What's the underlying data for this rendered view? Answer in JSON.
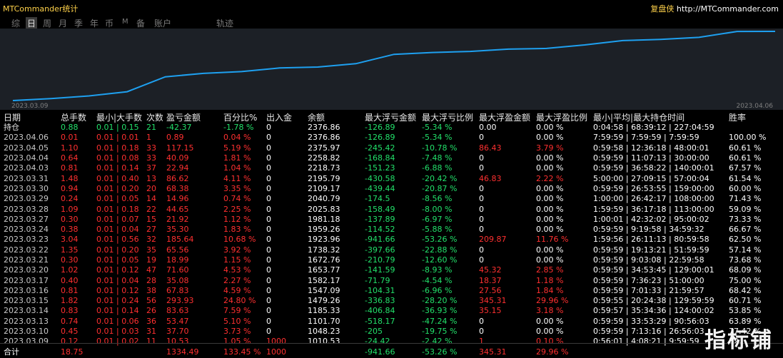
{
  "window": {
    "title": "MTCommander统计",
    "brand": "复盘侠",
    "brand_url": "http://MTCommander.com"
  },
  "tabs": [
    {
      "label": "综"
    },
    {
      "label": "日"
    },
    {
      "label": "周"
    },
    {
      "label": "月"
    },
    {
      "label": "季"
    },
    {
      "label": "年"
    },
    {
      "label": "币"
    },
    {
      "label": "M"
    },
    {
      "label": "备"
    },
    {
      "label": "账户"
    },
    {
      "label": "轨迹"
    }
  ],
  "active_tab": "日",
  "chart_data": {
    "type": "line",
    "x_start_label": "2023.03.09",
    "x_end_label": "2023.04.06",
    "x": [
      "2023.03.09",
      "2023.03.10",
      "2023.03.13",
      "2023.03.14",
      "2023.03.15",
      "2023.03.16",
      "2023.03.17",
      "2023.03.20",
      "2023.03.21",
      "2023.03.22",
      "2023.03.23",
      "2023.03.24",
      "2023.03.27",
      "2023.03.28",
      "2023.03.29",
      "2023.03.30",
      "2023.03.31",
      "2023.04.03",
      "2023.04.04",
      "2023.04.05",
      "2023.04.06"
    ],
    "values": [
      1010.53,
      1048.23,
      1101.7,
      1185.33,
      1479.26,
      1547.09,
      1582.17,
      1653.77,
      1672.76,
      1738.32,
      1923.96,
      1959.26,
      1981.18,
      2025.83,
      2040.79,
      2109.17,
      2195.79,
      2218.73,
      2258.82,
      2375.97,
      2376.86
    ],
    "series_color": "#1ea0f0",
    "grid": false
  },
  "table": {
    "headers": [
      "日期",
      "总手数",
      "最小|大手数",
      "次数",
      "盈亏金额",
      "百分比%",
      "出入金",
      "余额",
      "最大浮亏金额",
      "最大浮亏比例",
      "最大浮盈金额",
      "最大浮盈比例",
      "最小|平均|最大持仓时间",
      "胜率"
    ],
    "holding": [
      "持仓",
      "0.88",
      "0.01 | 0.15",
      "21",
      "-42.37",
      "-1.78 %",
      "0",
      "2376.86",
      "-126.89",
      "-5.34 %",
      "0.00",
      "0.00 %",
      "0:04:58 | 68:39:12 | 227:04:59",
      ""
    ],
    "rows": [
      [
        "2023.04.06",
        "0.01",
        "0.01 | 0.01",
        "1",
        "0.89",
        "0.04 %",
        "0",
        "2376.86",
        "-126.89",
        "-5.34 %",
        "0",
        "0.00 %",
        "7:59:59 | 7:59:59 | 7:59:59",
        "100.00 %"
      ],
      [
        "2023.04.05",
        "1.10",
        "0.01 | 0.18",
        "33",
        "117.15",
        "5.19 %",
        "0",
        "2375.97",
        "-245.42",
        "-10.78 %",
        "86.43",
        "3.79 %",
        "0:59:58 | 12:36:18 | 48:00:01",
        "60.61 %"
      ],
      [
        "2023.04.04",
        "0.64",
        "0.01 | 0.08",
        "33",
        "40.09",
        "1.81 %",
        "0",
        "2258.82",
        "-168.84",
        "-7.48 %",
        "0",
        "0.00 %",
        "0:59:59 | 11:07:13 | 30:00:00",
        "60.61 %"
      ],
      [
        "2023.04.03",
        "0.81",
        "0.01 | 0.14",
        "37",
        "22.94",
        "1.04 %",
        "0",
        "2218.73",
        "-151.23",
        "-6.88 %",
        "0",
        "0.00 %",
        "0:59:59 | 36:58:22 | 140:00:01",
        "67.57 %"
      ],
      [
        "2023.03.31",
        "1.48",
        "0.01 | 0.40",
        "13",
        "86.62",
        "4.11 %",
        "0",
        "2195.79",
        "-430.58",
        "-20.42 %",
        "46.83",
        "2.22 %",
        "5:00:00 | 27:09:15 | 57:00:04",
        "61.54 %"
      ],
      [
        "2023.03.30",
        "0.94",
        "0.01 | 0.20",
        "20",
        "68.38",
        "3.35 %",
        "0",
        "2109.17",
        "-439.44",
        "-20.87 %",
        "0",
        "0.00 %",
        "0:59:59 | 26:53:55 | 159:00:00",
        "60.00 %"
      ],
      [
        "2023.03.29",
        "0.24",
        "0.01 | 0.05",
        "14",
        "14.96",
        "0.74 %",
        "0",
        "2040.79",
        "-174.5",
        "-8.56 %",
        "0",
        "0.00 %",
        "1:00:00 | 26:42:17 | 108:00:00",
        "71.43 %"
      ],
      [
        "2023.03.28",
        "1.09",
        "0.01 | 0.18",
        "22",
        "44.65",
        "2.25 %",
        "0",
        "2025.83",
        "-158.49",
        "-8.00 %",
        "0",
        "0.00 %",
        "1:59:59 | 36:17:18 | 113:00:00",
        "59.09 %"
      ],
      [
        "2023.03.27",
        "0.30",
        "0.01 | 0.07",
        "15",
        "21.92",
        "1.12 %",
        "0",
        "1981.18",
        "-137.89",
        "-6.97 %",
        "0",
        "0.00 %",
        "1:00:01 | 42:32:02 | 95:00:02",
        "73.33 %"
      ],
      [
        "2023.03.24",
        "0.38",
        "0.01 | 0.04",
        "27",
        "35.30",
        "1.83 %",
        "0",
        "1959.26",
        "-114.52",
        "-5.88 %",
        "0",
        "0.00 %",
        "0:59:59 | 9:19:58 | 34:59:32",
        "66.67 %"
      ],
      [
        "2023.03.23",
        "3.04",
        "0.01 | 0.56",
        "32",
        "185.64",
        "10.68 %",
        "0",
        "1923.96",
        "-941.66",
        "-53.26 %",
        "209.87",
        "11.76 %",
        "1:59:56 | 26:11:13 | 80:59:58",
        "62.50 %"
      ],
      [
        "2023.03.22",
        "1.35",
        "0.01 | 0.20",
        "35",
        "65.56",
        "3.92 %",
        "0",
        "1738.32",
        "-397.66",
        "-22.88 %",
        "0",
        "0.00 %",
        "0:59:59 | 19:13:21 | 51:59:59",
        "57.14 %"
      ],
      [
        "2023.03.21",
        "0.30",
        "0.01 | 0.05",
        "19",
        "18.99",
        "1.15 %",
        "0",
        "1672.76",
        "-210.79",
        "-12.60 %",
        "0",
        "0.00 %",
        "0:59:59 | 9:03:08 | 22:59:58",
        "73.68 %"
      ],
      [
        "2023.03.20",
        "1.02",
        "0.01 | 0.12",
        "47",
        "71.60",
        "4.53 %",
        "0",
        "1653.77",
        "-141.59",
        "-8.93 %",
        "45.32",
        "2.85 %",
        "0:59:59 | 34:53:45 | 129:00:01",
        "68.09 %"
      ],
      [
        "2023.03.17",
        "0.40",
        "0.01 | 0.04",
        "28",
        "35.08",
        "2.27 %",
        "0",
        "1582.17",
        "-71.79",
        "-4.54 %",
        "18.37",
        "1.18 %",
        "0:59:59 | 7:36:23 | 51:00:00",
        "75.00 %"
      ],
      [
        "2023.03.16",
        "0.81",
        "0.01 | 0.12",
        "38",
        "67.83",
        "4.59 %",
        "0",
        "1547.09",
        "-104.31",
        "-6.96 %",
        "27.56",
        "1.84 %",
        "0:59:59 | 7:01:33 | 21:59:57",
        "68.42 %"
      ],
      [
        "2023.03.15",
        "1.82",
        "0.01 | 0.24",
        "56",
        "293.93",
        "24.80 %",
        "0",
        "1479.26",
        "-336.83",
        "-28.20 %",
        "345.31",
        "29.96 %",
        "0:59:55 | 20:24:38 | 129:59:59",
        "60.71 %"
      ],
      [
        "2023.03.14",
        "0.83",
        "0.01 | 0.14",
        "26",
        "83.63",
        "7.59 %",
        "0",
        "1185.33",
        "-406.84",
        "-36.93 %",
        "35.15",
        "3.18 %",
        "0:59:57 | 35:34:36 | 124:00:02",
        "53.85 %"
      ],
      [
        "2023.03.13",
        "0.74",
        "0.01 | 0.06",
        "36",
        "53.47",
        "5.10 %",
        "0",
        "1101.70",
        "-518.17",
        "-47.24 %",
        "0",
        "0.00 %",
        "0:59:59 | 33:53:29 | 90:56:03",
        "63.89 %"
      ],
      [
        "2023.03.10",
        "0.45",
        "0.01 | 0.03",
        "31",
        "37.70",
        "3.73 %",
        "0",
        "1048.23",
        "-205",
        "-19.75 %",
        "0",
        "0.00 %",
        "0:59:59 | 7:13:16 | 26:56:03",
        "77.42 %"
      ],
      [
        "2023.03.09",
        "0.12",
        "0.01 | 0.02",
        "11",
        "10.53",
        "1.05 %",
        "1000",
        "1010.53",
        "-24.42",
        "-2.42 %",
        "1",
        "0.10 %",
        "0:56:01 | 4:08:21 | 9:59:59",
        "82."
      ]
    ],
    "total": [
      "合计",
      "18.75",
      "",
      "",
      "1334.49",
      "133.45 %",
      "1000",
      "",
      "-941.66",
      "-53.26 %",
      "345.31",
      "29.96 %",
      "",
      ""
    ]
  },
  "watermark": "指标铺",
  "colors": {
    "gain": "#ff3030",
    "loss": "#22e06a",
    "title": "#ffd24a",
    "line": "#1ea0f0",
    "chart_bg": "#1c2026"
  }
}
